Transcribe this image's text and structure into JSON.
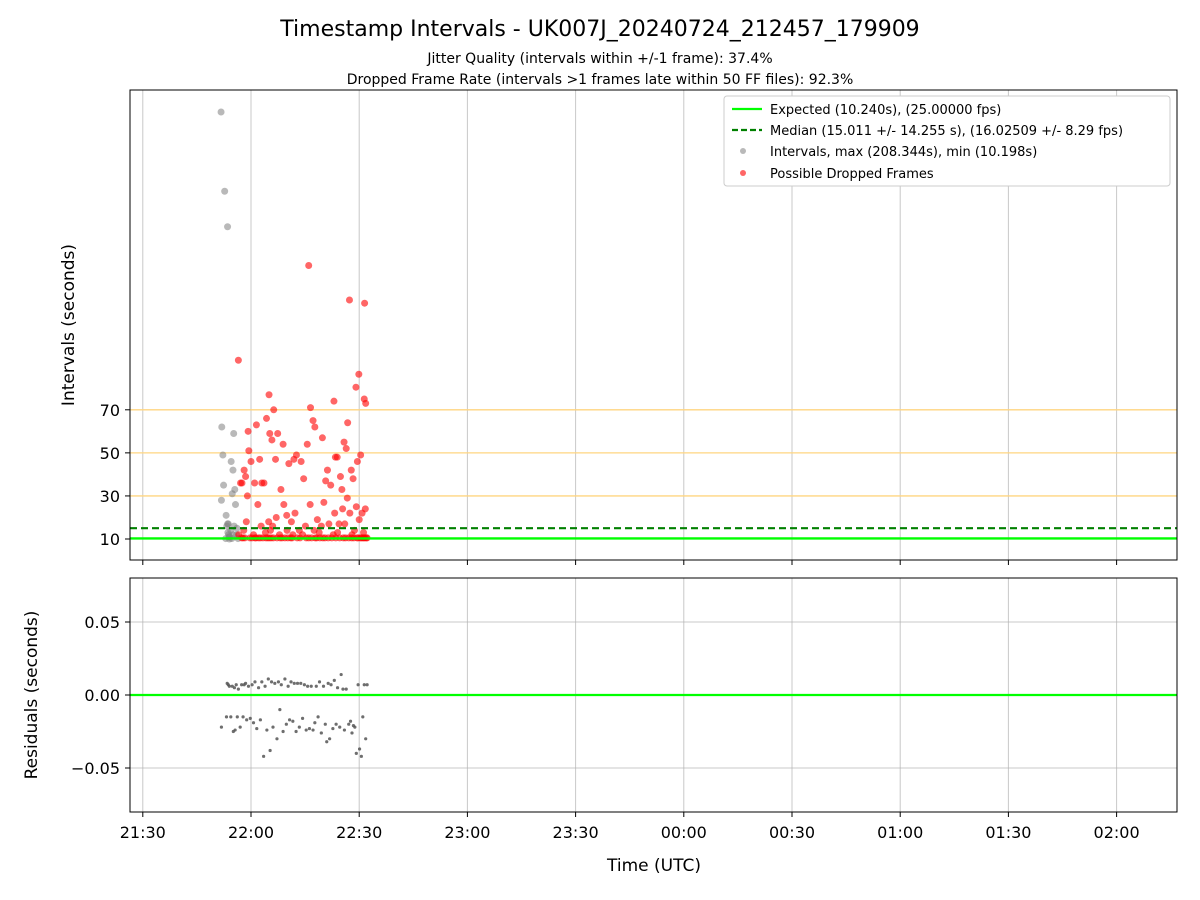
{
  "chart_data": {
    "type": "scatter",
    "title": "Timestamp Intervals - UK007J_20240724_212457_179909",
    "subtitles": [
      "Jitter Quality (intervals within +/-1 frame): 37.4%",
      "Dropped Frame Rate (intervals >1 frames late within 50 FF files): 92.3%"
    ],
    "xlabel": "Time (UTC)",
    "x_ticks": [
      "21:30",
      "22:00",
      "22:30",
      "23:00",
      "23:30",
      "00:00",
      "00:30",
      "01:00",
      "01:30",
      "02:00"
    ],
    "top_panel": {
      "ylabel": "Intervals (seconds)",
      "ylim": [
        -0.5,
        218
      ],
      "y_ticks": [
        10,
        30,
        50,
        70
      ],
      "threshold_lines": [
        30,
        50,
        70
      ],
      "expected_interval": 10.24,
      "median_interval": 15.011,
      "legend": [
        "Expected (10.240s), (25.00000 fps)",
        "Median (15.011 +/- 14.255 s), (16.02509 +/- 8.29 fps)",
        "Intervals, max (208.344s), min (10.198s)",
        "Possible Dropped Frames"
      ],
      "legend_position": "top-right",
      "gray_points": [
        [
          -8.3,
          208.3
        ],
        [
          -7.3,
          171.5
        ],
        [
          -6.5,
          155.0
        ],
        [
          -8.1,
          62
        ],
        [
          -8.2,
          28
        ],
        [
          -7.8,
          49
        ],
        [
          -7.6,
          35
        ],
        [
          -6.9,
          21
        ],
        [
          -6.7,
          16
        ],
        [
          -6.5,
          17
        ],
        [
          -6.4,
          13
        ],
        [
          -6.3,
          17
        ],
        [
          -6.2,
          12
        ],
        [
          -6.1,
          11
        ],
        [
          -6.0,
          10
        ],
        [
          -5.5,
          46
        ],
        [
          -5.2,
          31
        ],
        [
          -5.0,
          42
        ],
        [
          -4.8,
          59
        ],
        [
          -4.5,
          33
        ],
        [
          -4.3,
          26
        ],
        [
          -4.9,
          12
        ],
        [
          -5.6,
          14
        ],
        [
          -5.9,
          11
        ],
        [
          -4.0,
          12
        ],
        [
          -3.6,
          10.2
        ],
        [
          -7.0,
          10.2
        ],
        [
          -5.3,
          10.2
        ],
        [
          -4.7,
          16
        ],
        [
          -3.9,
          15
        ]
      ],
      "red_points": [
        [
          -3.5,
          93
        ],
        [
          5.0,
          77
        ],
        [
          6.3,
          70
        ],
        [
          16.0,
          137
        ],
        [
          23.0,
          74
        ],
        [
          27.3,
          121
        ],
        [
          29.1,
          80.5
        ],
        [
          31.4,
          75
        ],
        [
          29.9,
          86.5
        ],
        [
          31.5,
          119.5
        ],
        [
          31.8,
          73
        ],
        [
          -3.4,
          12
        ],
        [
          -2.9,
          36
        ],
        [
          -2.5,
          36
        ],
        [
          -1.9,
          42
        ],
        [
          -1.5,
          39
        ],
        [
          -0.8,
          60
        ],
        [
          -0.6,
          51
        ],
        [
          0.0,
          46
        ],
        [
          1.0,
          36
        ],
        [
          1.5,
          63
        ],
        [
          2.4,
          47
        ],
        [
          3.0,
          36
        ],
        [
          4.3,
          66
        ],
        [
          5.2,
          59
        ],
        [
          5.8,
          56
        ],
        [
          6.8,
          47
        ],
        [
          7.4,
          59
        ],
        [
          8.3,
          33
        ],
        [
          8.9,
          54
        ],
        [
          10.5,
          45
        ],
        [
          11.9,
          47
        ],
        [
          12.6,
          49
        ],
        [
          13.9,
          46
        ],
        [
          14.6,
          38
        ],
        [
          15.6,
          54
        ],
        [
          16.5,
          71
        ],
        [
          17.2,
          65
        ],
        [
          17.7,
          62
        ],
        [
          19.8,
          57
        ],
        [
          20.7,
          37
        ],
        [
          21.2,
          42
        ],
        [
          23.4,
          48
        ],
        [
          23.9,
          48
        ],
        [
          24.8,
          39
        ],
        [
          25.2,
          33
        ],
        [
          25.8,
          55
        ],
        [
          26.4,
          52
        ],
        [
          26.8,
          64
        ],
        [
          27.8,
          42
        ],
        [
          28.3,
          38
        ],
        [
          29.5,
          46
        ],
        [
          30.4,
          49
        ],
        [
          -1.0,
          30
        ],
        [
          1.9,
          26
        ],
        [
          3.6,
          36
        ],
        [
          4.9,
          18
        ],
        [
          6.0,
          16
        ],
        [
          7.0,
          20
        ],
        [
          9.1,
          26
        ],
        [
          9.9,
          21
        ],
        [
          11.2,
          18
        ],
        [
          12.2,
          22
        ],
        [
          13.4,
          14
        ],
        [
          15.1,
          16
        ],
        [
          16.4,
          26
        ],
        [
          17.5,
          14
        ],
        [
          18.4,
          19
        ],
        [
          19.5,
          16
        ],
        [
          20.2,
          27
        ],
        [
          21.6,
          17
        ],
        [
          22.1,
          35
        ],
        [
          23.2,
          22
        ],
        [
          24.4,
          17
        ],
        [
          25.4,
          24
        ],
        [
          26.0,
          17
        ],
        [
          26.7,
          29
        ],
        [
          27.4,
          22
        ],
        [
          28.7,
          14
        ],
        [
          29.2,
          25
        ],
        [
          30.0,
          19
        ],
        [
          30.8,
          22
        ],
        [
          31.7,
          24
        ],
        [
          -2.0,
          14
        ],
        [
          -1.3,
          18
        ],
        [
          0.7,
          12
        ],
        [
          2.8,
          16
        ],
        [
          4.0,
          13
        ],
        [
          5.4,
          14
        ],
        [
          7.9,
          12
        ],
        [
          10.0,
          14
        ],
        [
          11.6,
          12
        ],
        [
          14.3,
          12
        ],
        [
          18.9,
          13
        ],
        [
          22.8,
          12
        ],
        [
          24.0,
          13
        ],
        [
          28.0,
          12
        ],
        [
          31.2,
          13
        ],
        [
          -2.6,
          10.5
        ],
        [
          -2.2,
          10.5
        ],
        [
          -1.7,
          10.5
        ],
        [
          -0.3,
          10.5
        ],
        [
          0.3,
          10.5
        ],
        [
          1.1,
          10.5
        ],
        [
          1.4,
          10.5
        ],
        [
          2.1,
          10.5
        ],
        [
          2.6,
          10.5
        ],
        [
          3.3,
          10.5
        ],
        [
          4.1,
          10.5
        ],
        [
          4.6,
          10.5
        ],
        [
          5.1,
          10.5
        ],
        [
          5.6,
          10.5
        ],
        [
          6.2,
          10.5
        ],
        [
          7.2,
          10.5
        ],
        [
          8.1,
          10.5
        ],
        [
          8.6,
          10.5
        ],
        [
          9.4,
          10.5
        ],
        [
          10.2,
          10.5
        ],
        [
          11.0,
          10.5
        ],
        [
          11.4,
          10.5
        ],
        [
          12.8,
          10.5
        ],
        [
          13.6,
          10.5
        ],
        [
          15.3,
          10.5
        ],
        [
          16.0,
          10.5
        ],
        [
          16.8,
          10.5
        ],
        [
          17.8,
          10.5
        ],
        [
          18.2,
          10.5
        ],
        [
          19.1,
          10.5
        ],
        [
          19.9,
          10.5
        ],
        [
          20.5,
          10.5
        ],
        [
          21.4,
          10.5
        ],
        [
          22.4,
          10.5
        ],
        [
          23.5,
          10.5
        ],
        [
          24.6,
          10.5
        ],
        [
          25.6,
          10.5
        ],
        [
          26.2,
          10.5
        ],
        [
          27.1,
          10.5
        ],
        [
          27.9,
          10.5
        ],
        [
          28.5,
          10.5
        ],
        [
          29.4,
          10.5
        ],
        [
          29.7,
          10.5
        ],
        [
          30.3,
          10.5
        ],
        [
          30.6,
          10.5
        ],
        [
          31.0,
          10.5
        ],
        [
          31.3,
          10.5
        ],
        [
          31.6,
          10.5
        ],
        [
          32.0,
          10.5
        ],
        [
          32.2,
          10.5
        ]
      ]
    },
    "bottom_panel": {
      "ylabel": "Residuals (seconds)",
      "ylim": [
        -0.08,
        0.08
      ],
      "y_ticks": [
        0.05,
        0.0,
        -0.05
      ],
      "y_tick_labels": [
        "0.05",
        "0.00",
        "−0.05"
      ],
      "zero_line": 0,
      "points": [
        [
          -8.2,
          -0.022
        ],
        [
          -6.8,
          -0.015
        ],
        [
          -6.6,
          0.008
        ],
        [
          -6.3,
          0.007
        ],
        [
          -6.0,
          0.006
        ],
        [
          -5.6,
          -0.015
        ],
        [
          -5.2,
          0.006
        ],
        [
          -4.9,
          -0.025
        ],
        [
          -4.6,
          0.005
        ],
        [
          -4.4,
          -0.024
        ],
        [
          -4.1,
          0.007
        ],
        [
          -3.8,
          -0.015
        ],
        [
          -3.5,
          0.004
        ],
        [
          -3.0,
          -0.022
        ],
        [
          -2.6,
          0.007
        ],
        [
          -2.2,
          -0.015
        ],
        [
          -1.9,
          0.007
        ],
        [
          -1.5,
          0.008
        ],
        [
          -1.2,
          -0.017
        ],
        [
          -0.7,
          0.006
        ],
        [
          -0.2,
          -0.016
        ],
        [
          0.3,
          0.007
        ],
        [
          0.7,
          -0.019
        ],
        [
          1.1,
          0.009
        ],
        [
          1.6,
          -0.023
        ],
        [
          2.1,
          0.005
        ],
        [
          2.6,
          -0.017
        ],
        [
          3.0,
          0.009
        ],
        [
          3.5,
          -0.042
        ],
        [
          3.9,
          0.006
        ],
        [
          4.4,
          -0.024
        ],
        [
          4.8,
          0.011
        ],
        [
          5.3,
          -0.038
        ],
        [
          5.7,
          0.009
        ],
        [
          6.1,
          -0.022
        ],
        [
          6.6,
          0.008
        ],
        [
          7.2,
          -0.03
        ],
        [
          7.6,
          0.009
        ],
        [
          8.0,
          -0.01
        ],
        [
          8.4,
          0.007
        ],
        [
          8.9,
          -0.025
        ],
        [
          9.4,
          0.011
        ],
        [
          9.8,
          -0.02
        ],
        [
          10.3,
          0.006
        ],
        [
          10.7,
          -0.017
        ],
        [
          11.1,
          0.009
        ],
        [
          11.6,
          -0.018
        ],
        [
          12.0,
          0.008
        ],
        [
          12.5,
          -0.025
        ],
        [
          12.9,
          0.008
        ],
        [
          13.4,
          -0.022
        ],
        [
          13.8,
          0.008
        ],
        [
          14.3,
          -0.016
        ],
        [
          14.8,
          0.007
        ],
        [
          15.3,
          -0.024
        ],
        [
          15.7,
          0.006
        ],
        [
          16.2,
          -0.023
        ],
        [
          16.7,
          0.006
        ],
        [
          17.2,
          -0.024
        ],
        [
          17.7,
          -0.019
        ],
        [
          18.1,
          0.006
        ],
        [
          18.6,
          -0.015
        ],
        [
          19.0,
          0.009
        ],
        [
          19.5,
          -0.026
        ],
        [
          20.1,
          0.006
        ],
        [
          20.6,
          -0.02
        ],
        [
          21.0,
          -0.032
        ],
        [
          21.4,
          0.008
        ],
        [
          21.8,
          -0.03
        ],
        [
          22.2,
          0.007
        ],
        [
          22.7,
          -0.023
        ],
        [
          23.1,
          0.01
        ],
        [
          23.6,
          -0.02
        ],
        [
          24.0,
          0.005
        ],
        [
          24.6,
          -0.022
        ],
        [
          25.0,
          0.014
        ],
        [
          25.5,
          0.004
        ],
        [
          25.9,
          -0.024
        ],
        [
          26.4,
          0.004
        ],
        [
          27.1,
          -0.02
        ],
        [
          27.6,
          -0.018
        ],
        [
          28.0,
          -0.026
        ],
        [
          28.4,
          -0.021
        ],
        [
          28.8,
          -0.022
        ],
        [
          29.2,
          -0.04
        ],
        [
          29.7,
          0.007
        ],
        [
          30.1,
          -0.037
        ],
        [
          30.6,
          -0.042
        ],
        [
          31.0,
          -0.015
        ],
        [
          31.4,
          0.007
        ],
        [
          31.8,
          -0.03
        ],
        [
          32.2,
          0.007
        ]
      ]
    }
  }
}
